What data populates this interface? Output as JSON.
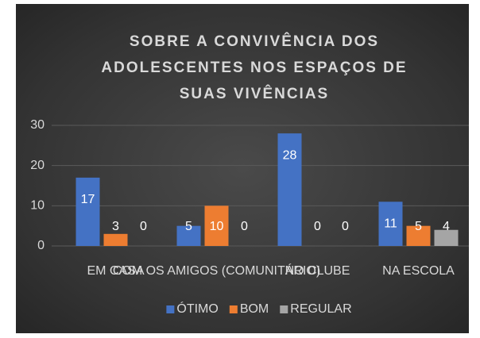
{
  "chart_data": {
    "type": "bar",
    "title": "SOBRE A CONVIVÊNCIA DOS ADOLESCENTES NOS ESPAÇOS DE SUAS VIVÊNCIAS",
    "categories": [
      "EM CASA",
      "COM OS AMIGOS (COMUNITÁRIO)",
      "NO CLUBE",
      "NA ESCOLA"
    ],
    "series": [
      {
        "name": "ÓTIMO",
        "color": "#4472c4",
        "values": [
          17,
          5,
          28,
          11
        ]
      },
      {
        "name": "BOM",
        "color": "#ed7d31",
        "values": [
          3,
          10,
          0,
          5
        ]
      },
      {
        "name": "REGULAR",
        "color": "#a5a5a5",
        "values": [
          0,
          0,
          0,
          4
        ]
      }
    ],
    "ylim": [
      0,
      30
    ],
    "yticks": [
      0,
      10,
      20,
      30
    ],
    "grid": true,
    "legend": "bottom"
  }
}
